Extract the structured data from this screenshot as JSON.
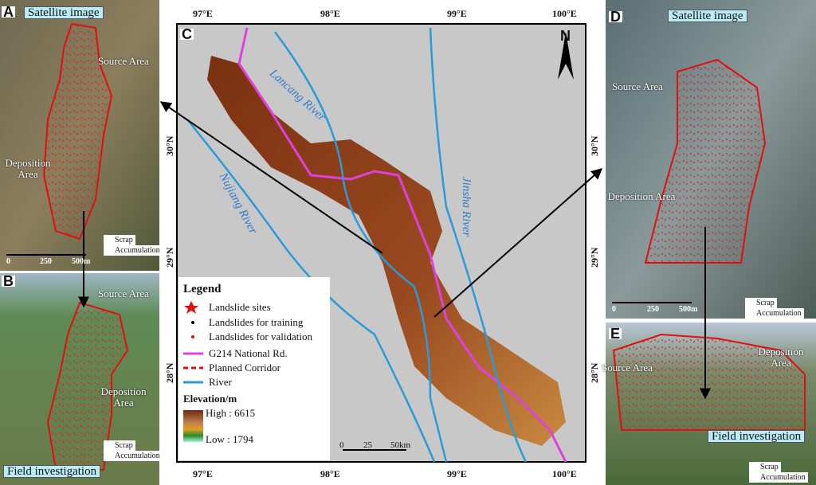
{
  "panels": {
    "A": {
      "label": "A",
      "caption": "Satellite image",
      "source": "Source Area",
      "deposition": "Deposition Area",
      "scale": [
        "0",
        "250",
        "500m"
      ],
      "key": [
        "Scrap",
        "Accumulation"
      ]
    },
    "B": {
      "label": "B",
      "caption": "Field investigation",
      "source": "Source Area",
      "deposition": "Deposition Area",
      "key": [
        "Scrap",
        "Accumulation"
      ]
    },
    "C": {
      "label": "C",
      "north": "N",
      "x_labels": [
        "97°E",
        "98°E",
        "99°E",
        "100°E"
      ],
      "y_labels": [
        "30°N",
        "29°N",
        "28°N"
      ],
      "rivers": [
        "Lancang River",
        "Nujiang River",
        "Jinsha River"
      ],
      "legend": {
        "title": "Legend",
        "items": [
          "Landslide sites",
          "Landslides for training",
          "Landslides for validation",
          "G214 National Rd.",
          "Planned Corridor",
          "River"
        ],
        "elevation_title": "Elevation/m",
        "high": "High : 6615",
        "low": "Low : 1794"
      },
      "scale": [
        "0",
        "25",
        "50km"
      ]
    },
    "D": {
      "label": "D",
      "caption": "Satellite image",
      "source": "Source Area",
      "deposition": "Deposition Area",
      "scale": [
        "0",
        "250",
        "500m"
      ],
      "key": [
        "Scrap",
        "Accumulation"
      ]
    },
    "E": {
      "label": "E",
      "caption": "Field investigation",
      "source": "Source Area",
      "deposition": "Deposition Area",
      "key": [
        "Scrap",
        "Accumulation"
      ]
    }
  }
}
